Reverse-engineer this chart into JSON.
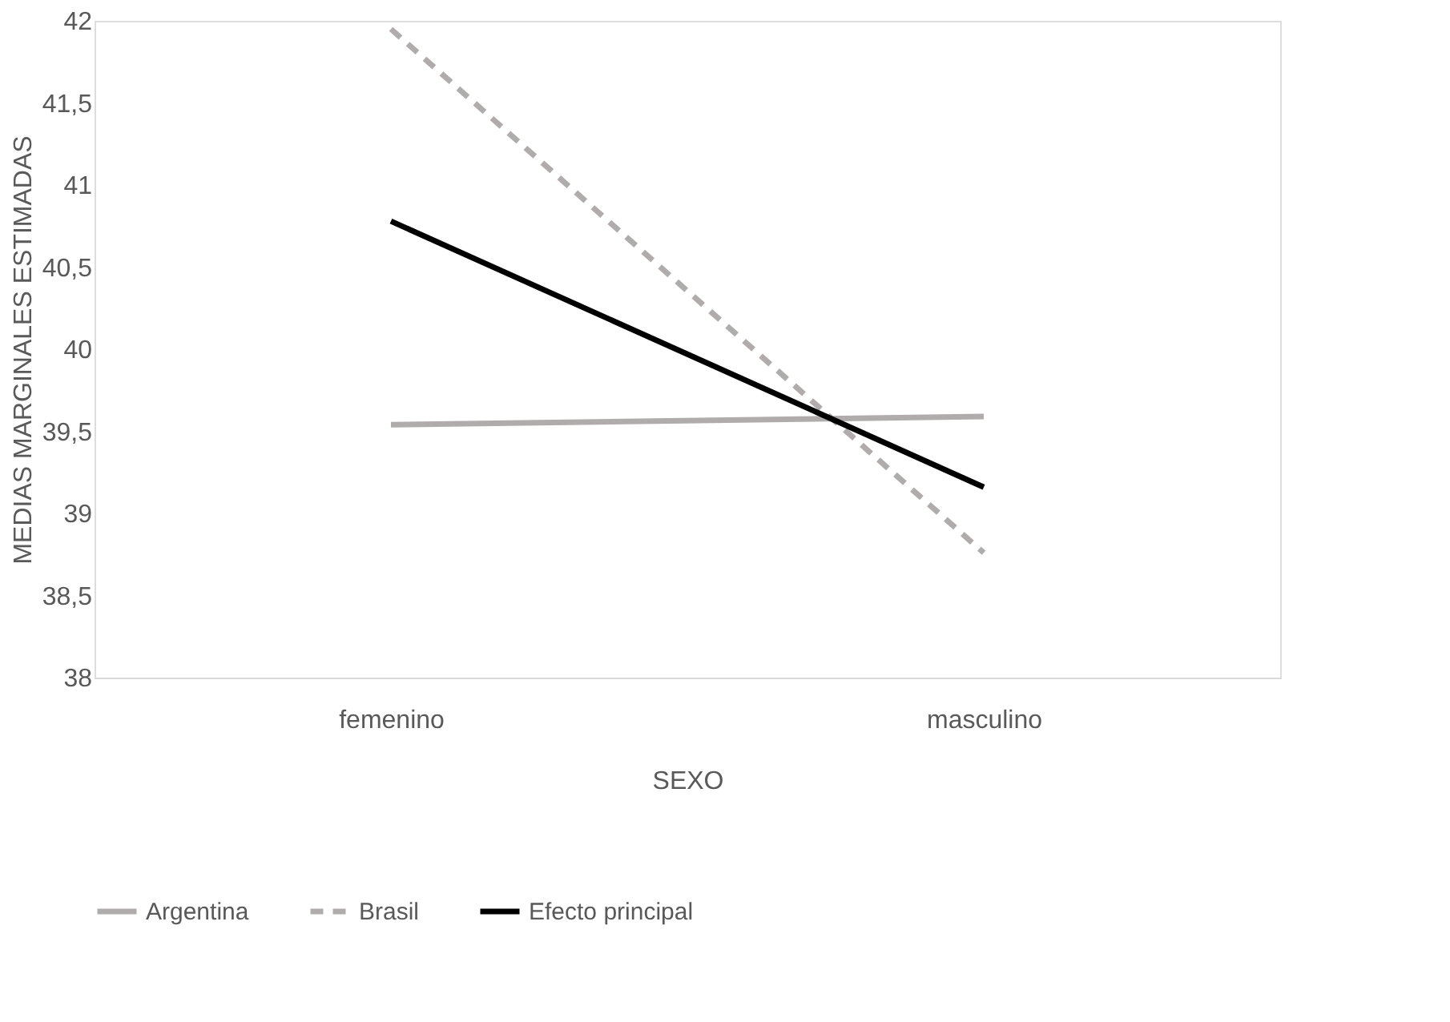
{
  "chart_data": {
    "type": "line",
    "xlabel": "SEXO",
    "ylabel": "MEDIAS MARGINALES ESTIMADAS",
    "categories": [
      "femenino",
      "masculino"
    ],
    "series": [
      {
        "name": "Argentina",
        "color": "#b0acac",
        "line_style": "solid",
        "values": [
          39.54,
          39.59
        ]
      },
      {
        "name": "Brasil",
        "color": "#b0acac",
        "line_style": "dashed",
        "values": [
          41.95,
          38.76
        ]
      },
      {
        "name": "Efecto principal",
        "color": "#000000",
        "line_style": "solid",
        "values": [
          40.78,
          39.16
        ]
      }
    ],
    "ylim": [
      38,
      42
    ],
    "yticks": [
      {
        "value": 38,
        "label": "38"
      },
      {
        "value": 38.5,
        "label": "38,5"
      },
      {
        "value": 39,
        "label": "39"
      },
      {
        "value": 39.5,
        "label": "39,5"
      },
      {
        "value": 40,
        "label": "40"
      },
      {
        "value": 40.5,
        "label": "40,5"
      },
      {
        "value": 41,
        "label": "41"
      },
      {
        "value": 41.5,
        "label": "41,5"
      },
      {
        "value": 42,
        "label": "42"
      }
    ],
    "grid": false,
    "legend": "bottom",
    "marker": "none"
  }
}
